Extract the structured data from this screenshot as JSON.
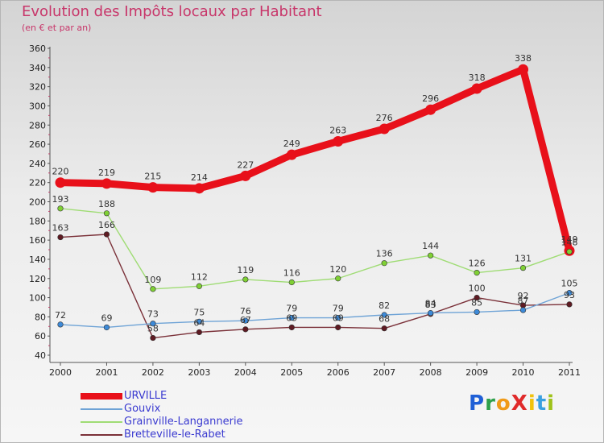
{
  "title": "Evolution des Impôts locaux par Habitant",
  "subtitle": "(en € et par an)",
  "brand": "ProXiti",
  "brand_colors": [
    "#1f5fd6",
    "#2ea04a",
    "#f09a18",
    "#e02a2a",
    "#f0c20c",
    "#3aa0e0",
    "#9fc21a"
  ],
  "chart_data": {
    "type": "line",
    "title": "Evolution des Impôts locaux par Habitant",
    "subtitle": "(en € et par an)",
    "x": [
      "2000",
      "2001",
      "2002",
      "2003",
      "2004",
      "2005",
      "2006",
      "2007",
      "2008",
      "2009",
      "2010",
      "2011"
    ],
    "ylim": [
      40,
      360
    ],
    "yticks": [
      40,
      60,
      80,
      100,
      120,
      140,
      160,
      180,
      200,
      220,
      240,
      260,
      280,
      300,
      320,
      340,
      360
    ],
    "grid": false,
    "legend_position": "bottom-left",
    "series": [
      {
        "name": "URVILLE",
        "color": "#e8101a",
        "marker": "#e8101a",
        "values": [
          220,
          219,
          215,
          214,
          227,
          249,
          263,
          276,
          296,
          318,
          338,
          149
        ],
        "labels": [
          "220",
          "219",
          "215",
          "214",
          "227",
          "249",
          "263",
          "276",
          "296",
          "318",
          "338",
          "149"
        ]
      },
      {
        "name": "Gouvix",
        "color": "#6ea3d6",
        "marker": "#3d8ad8",
        "values": [
          72,
          69,
          73,
          75,
          76,
          79,
          79,
          82,
          84,
          85,
          87,
          105
        ],
        "labels": [
          "72",
          "69",
          "73",
          "75",
          "76",
          "79",
          "79",
          "82",
          "84",
          "85",
          "87",
          "105"
        ]
      },
      {
        "name": "Grainville-Langannerie",
        "color": "#9fdc74",
        "marker": "#7fd034",
        "values": [
          193,
          188,
          109,
          112,
          119,
          116,
          120,
          136,
          144,
          126,
          131,
          148
        ],
        "labels": [
          "193",
          "188",
          "109",
          "112",
          "119",
          "116",
          "120",
          "136",
          "144",
          "126",
          "131",
          "148"
        ]
      },
      {
        "name": "Bretteville-le-Rabet",
        "color": "#7a3038",
        "marker": "#5e1a22",
        "values": [
          163,
          166,
          58,
          64,
          67,
          69,
          69,
          68,
          83,
          100,
          92,
          93
        ],
        "labels": [
          "163",
          "166",
          "58",
          "64",
          "67",
          "69",
          "69",
          "68",
          "83",
          "100",
          "92",
          "93"
        ]
      }
    ]
  }
}
